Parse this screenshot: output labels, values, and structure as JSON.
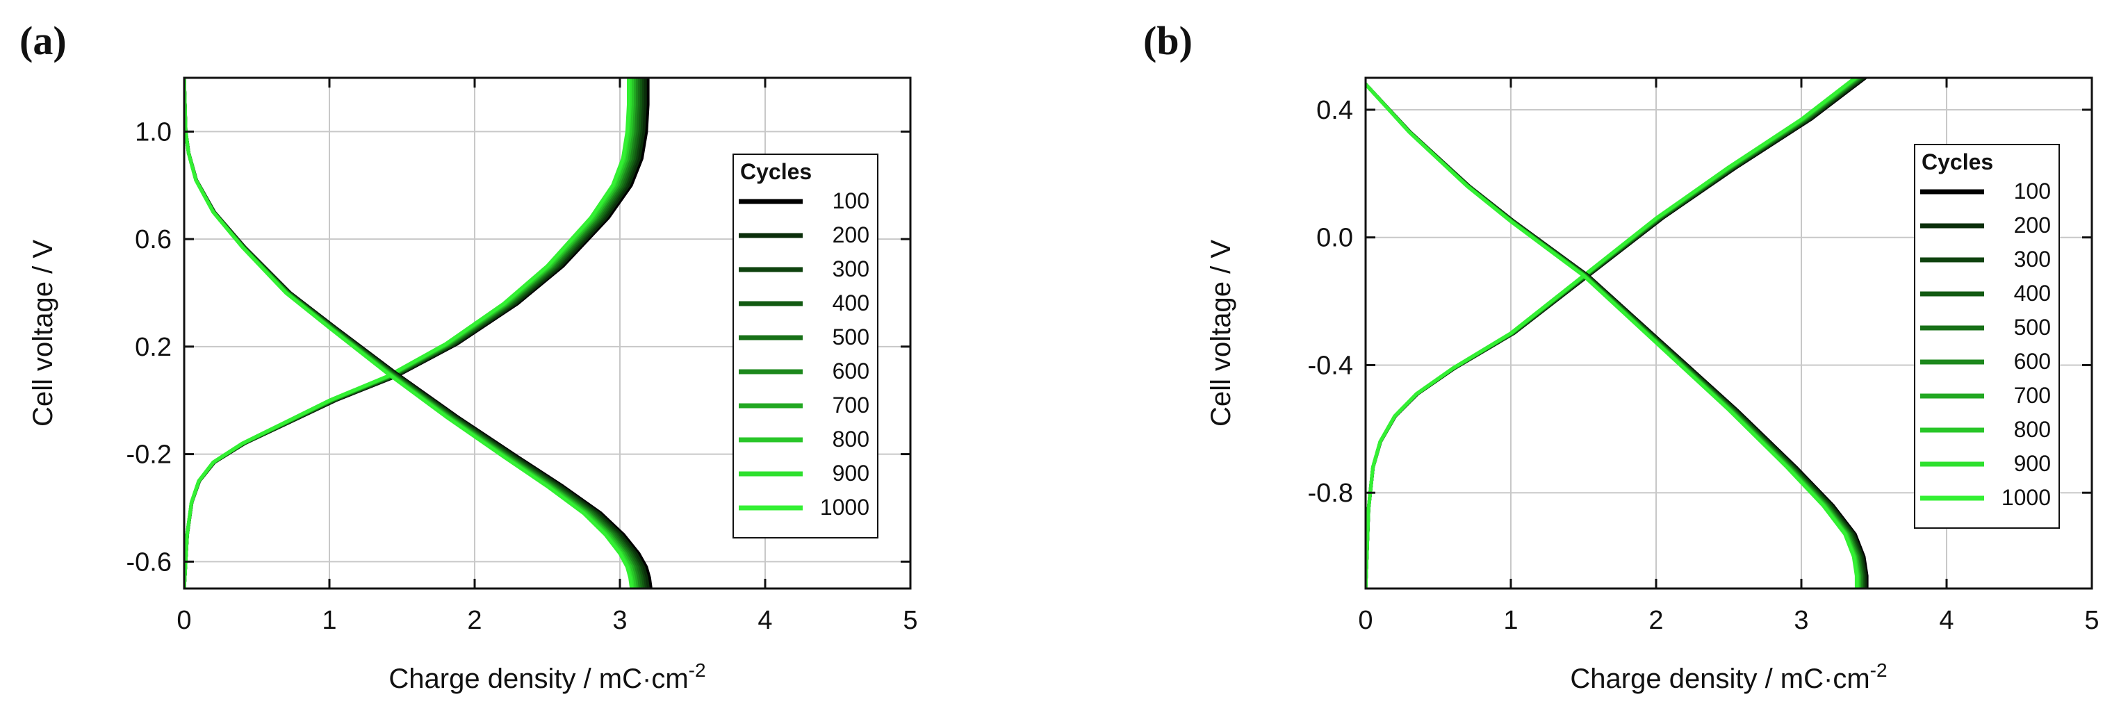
{
  "chart_data": [
    {
      "type": "line",
      "panel_label": "(a)",
      "xlabel": "Charge density / mC·cm",
      "xlabel_sup": "-2",
      "ylabel": "Cell voltage / V",
      "xlim": [
        0,
        5
      ],
      "ylim": [
        -0.7,
        1.2
      ],
      "xticks": [
        0,
        1,
        2,
        3,
        4,
        5
      ],
      "xtick_labels": [
        "0",
        "1",
        "2",
        "3",
        "4",
        "5"
      ],
      "yticks": [
        -0.6,
        -0.2,
        0.2,
        0.6,
        1.0
      ],
      "ytick_labels": [
        "-0.6",
        "-0.2",
        "0.2",
        "0.6",
        "1.0"
      ],
      "grid": true,
      "legend": {
        "title": "Cycles",
        "position": "right",
        "entries": [
          "100",
          "200",
          "300",
          "400",
          "500",
          "600",
          "700",
          "800",
          "900",
          "1000"
        ]
      },
      "series_colors": [
        "#000000",
        "#0a2e0a",
        "#0e420e",
        "#125a12",
        "#177017",
        "#1c881c",
        "#22a822",
        "#28c628",
        "#2ee02e",
        "#33f033"
      ],
      "curves": {
        "charge": {
          "x": [
            0.0,
            0.02,
            0.05,
            0.1,
            0.2,
            0.4,
            0.7,
            1.0,
            1.4,
            1.8,
            2.2,
            2.5,
            2.8,
            2.95,
            3.02,
            3.05,
            3.06,
            3.06
          ],
          "y": [
            -0.7,
            -0.5,
            -0.38,
            -0.3,
            -0.23,
            -0.16,
            -0.08,
            0.0,
            0.09,
            0.21,
            0.36,
            0.5,
            0.68,
            0.8,
            0.9,
            1.0,
            1.1,
            1.2
          ]
        },
        "discharge": {
          "x": [
            0.0,
            0.01,
            0.03,
            0.08,
            0.2,
            0.4,
            0.7,
            1.0,
            1.4,
            1.8,
            2.2,
            2.5,
            2.75,
            2.9,
            3.0,
            3.05,
            3.07,
            3.08
          ],
          "y": [
            1.2,
            1.0,
            0.92,
            0.82,
            0.7,
            0.57,
            0.4,
            0.27,
            0.1,
            -0.06,
            -0.21,
            -0.32,
            -0.42,
            -0.5,
            -0.57,
            -0.62,
            -0.66,
            -0.7
          ]
        }
      },
      "cycle_x_offset": [
        0.14,
        0.12,
        0.1,
        0.085,
        0.07,
        0.055,
        0.04,
        0.025,
        0.01,
        0.0
      ]
    },
    {
      "type": "line",
      "panel_label": "(b)",
      "xlabel": "Charge density / mC·cm",
      "xlabel_sup": "-2",
      "ylabel": "Cell voltage / V",
      "xlim": [
        0,
        5
      ],
      "ylim": [
        -1.1,
        0.5
      ],
      "xticks": [
        0,
        1,
        2,
        3,
        4,
        5
      ],
      "xtick_labels": [
        "0",
        "1",
        "2",
        "3",
        "4",
        "5"
      ],
      "yticks": [
        -0.8,
        -0.4,
        0.0,
        0.4
      ],
      "ytick_labels": [
        "-0.8",
        "-0.4",
        "0.0",
        "0.4"
      ],
      "grid": true,
      "legend": {
        "title": "Cycles",
        "position": "right",
        "entries": [
          "100",
          "200",
          "300",
          "400",
          "500",
          "600",
          "700",
          "800",
          "900",
          "1000"
        ]
      },
      "series_colors": [
        "#000000",
        "#0a2e0a",
        "#0e420e",
        "#125a12",
        "#177017",
        "#1c881c",
        "#22a822",
        "#28c628",
        "#2ee02e",
        "#33f033"
      ],
      "curves": {
        "charge": {
          "x": [
            0.0,
            0.02,
            0.05,
            0.1,
            0.2,
            0.35,
            0.6,
            1.0,
            1.5,
            2.0,
            2.5,
            3.0,
            3.37
          ],
          "y": [
            -1.1,
            -0.85,
            -0.72,
            -0.64,
            -0.56,
            -0.49,
            -0.41,
            -0.3,
            -0.12,
            0.06,
            0.22,
            0.37,
            0.5
          ]
        },
        "discharge": {
          "x": [
            0.0,
            0.3,
            0.7,
            1.0,
            1.5,
            2.0,
            2.5,
            2.9,
            3.15,
            3.3,
            3.36,
            3.38,
            3.38
          ],
          "y": [
            0.48,
            0.33,
            0.16,
            0.05,
            -0.12,
            -0.33,
            -0.54,
            -0.72,
            -0.84,
            -0.93,
            -1.0,
            -1.06,
            -1.1
          ]
        }
      },
      "cycle_x_offset": [
        0.07,
        0.06,
        0.05,
        0.042,
        0.035,
        0.028,
        0.02,
        0.012,
        0.006,
        0.0
      ]
    }
  ]
}
